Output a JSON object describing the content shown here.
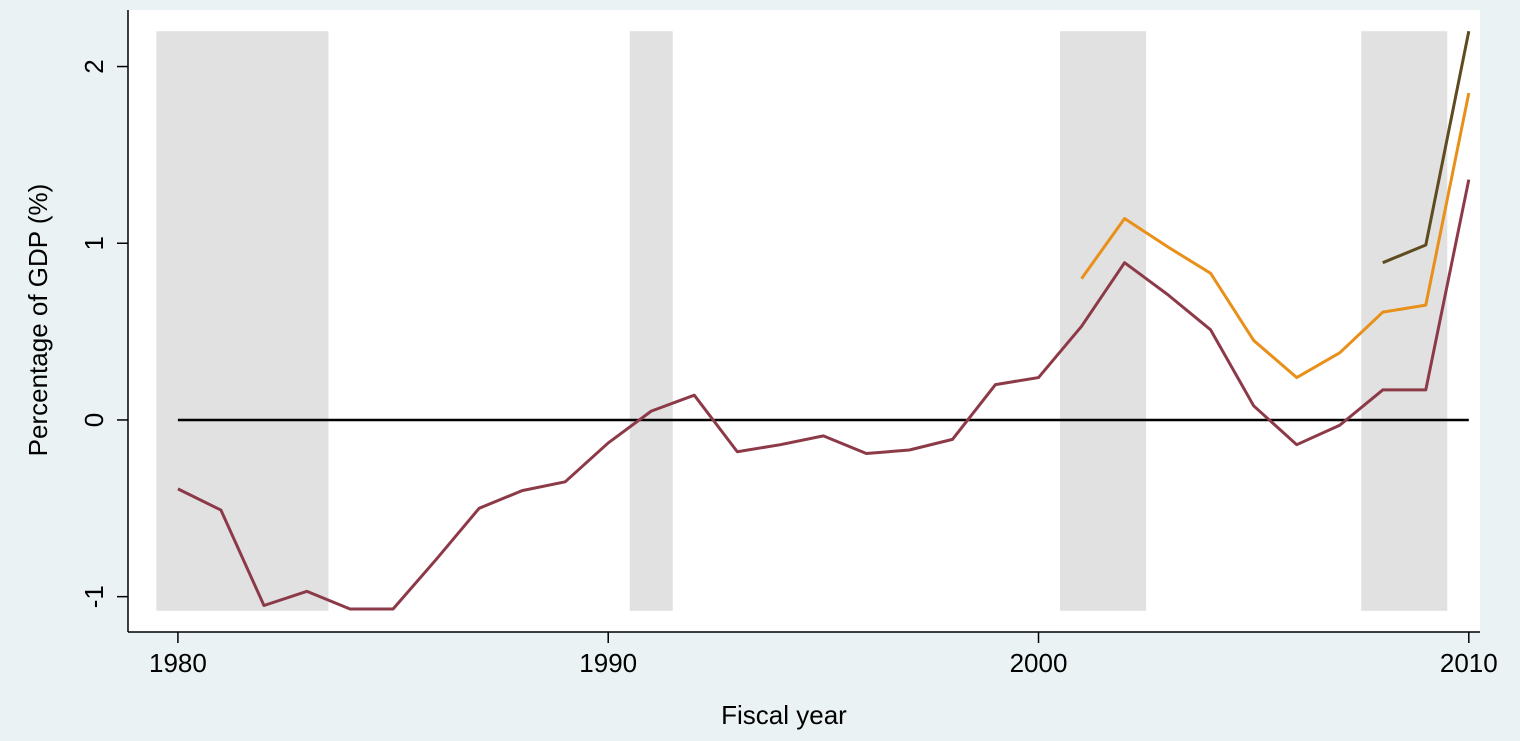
{
  "chart_data": {
    "type": "line",
    "x_label": "Fiscal year",
    "y_label": "Percentage of GDP (%)",
    "x": [
      1980,
      1981,
      1982,
      1983,
      1984,
      1985,
      1986,
      1987,
      1988,
      1989,
      1990,
      1991,
      1992,
      1993,
      1994,
      1995,
      1996,
      1997,
      1998,
      1999,
      2000,
      2001,
      2002,
      2003,
      2004,
      2005,
      2006,
      2007,
      2008,
      2009,
      2010
    ],
    "series": [
      {
        "color": "#8c3a48",
        "values": [
          -0.39,
          -0.51,
          -1.05,
          -0.97,
          -1.07,
          -1.07,
          -0.79,
          -0.5,
          -0.4,
          -0.35,
          -0.13,
          0.05,
          0.14,
          -0.18,
          -0.14,
          -0.09,
          -0.19,
          -0.17,
          -0.11,
          0.2,
          0.24,
          0.53,
          0.89,
          0.71,
          0.51,
          0.08,
          -0.14,
          -0.03,
          0.17,
          0.17,
          1.36
        ]
      },
      {
        "color": "#e8901a",
        "values": [
          null,
          null,
          null,
          null,
          null,
          null,
          null,
          null,
          null,
          null,
          null,
          null,
          null,
          null,
          null,
          null,
          null,
          null,
          null,
          null,
          null,
          0.8,
          1.14,
          0.98,
          0.83,
          0.45,
          0.24,
          0.38,
          0.61,
          0.65,
          1.85
        ]
      },
      {
        "color": "#5e4b1f",
        "values": [
          null,
          null,
          null,
          null,
          null,
          null,
          null,
          null,
          null,
          null,
          null,
          null,
          null,
          null,
          null,
          null,
          null,
          null,
          null,
          null,
          null,
          null,
          null,
          null,
          null,
          null,
          null,
          null,
          0.89,
          0.99,
          2.2
        ]
      }
    ],
    "reference_line": {
      "y": 0,
      "color": "#000000"
    },
    "shaded_periods": [
      {
        "from": 1979.5,
        "to": 1983.5
      },
      {
        "from": 1990.5,
        "to": 1991.5
      },
      {
        "from": 2000.5,
        "to": 2002.5
      },
      {
        "from": 2007.5,
        "to": 2009.5
      }
    ],
    "shade_ylim": [
      -1.08,
      2.2
    ],
    "shade_color": "#e1e1e1",
    "xlim": [
      1978.84,
      2010.26
    ],
    "ylim": [
      -1.2,
      2.32
    ],
    "xticks": [
      1980,
      1990,
      2000,
      2010
    ],
    "yticks": [
      -1,
      0,
      1,
      2
    ]
  }
}
